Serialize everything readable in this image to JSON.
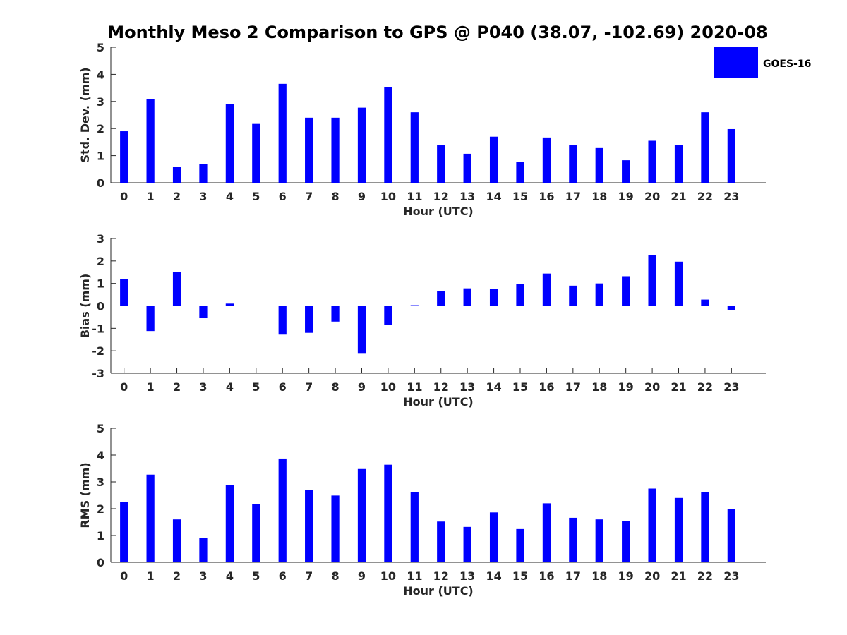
{
  "chart_data": [
    {
      "type": "bar",
      "title": "Monthly Meso 2 Comparison to GPS @ P040 (38.07, -102.69) 2020-08",
      "xlabel": "Hour (UTC)",
      "ylabel": "Std. Dev. (mm)",
      "ylim": [
        0,
        5
      ],
      "yticks": [
        0,
        1,
        2,
        3,
        4,
        5
      ],
      "categories": [
        "0",
        "1",
        "2",
        "3",
        "4",
        "5",
        "6",
        "7",
        "8",
        "9",
        "10",
        "11",
        "12",
        "13",
        "14",
        "15",
        "16",
        "17",
        "18",
        "19",
        "20",
        "21",
        "22",
        "23"
      ],
      "series": [
        {
          "name": "GOES-16",
          "color": "#0000ff",
          "values": [
            1.9,
            3.08,
            0.58,
            0.7,
            2.9,
            2.17,
            3.65,
            2.4,
            2.4,
            2.77,
            3.52,
            2.6,
            1.38,
            1.07,
            1.7,
            0.76,
            1.67,
            1.38,
            1.28,
            0.83,
            1.55,
            1.38,
            2.6,
            1.98
          ]
        }
      ],
      "legend": {
        "placement": "top-right",
        "entries": [
          "GOES-16"
        ]
      },
      "grid": false
    },
    {
      "type": "bar",
      "xlabel": "Hour (UTC)",
      "ylabel": "Bias (mm)",
      "ylim": [
        -3,
        3
      ],
      "yticks": [
        -3,
        -2,
        -1,
        0,
        1,
        2,
        3
      ],
      "categories": [
        "0",
        "1",
        "2",
        "3",
        "4",
        "5",
        "6",
        "7",
        "8",
        "9",
        "10",
        "11",
        "12",
        "13",
        "14",
        "15",
        "16",
        "17",
        "18",
        "19",
        "20",
        "21",
        "22",
        "23"
      ],
      "series": [
        {
          "color": "#0000ff",
          "values": [
            1.2,
            -1.12,
            1.5,
            -0.55,
            0.1,
            0.0,
            -1.28,
            -1.2,
            -0.7,
            -2.13,
            -0.85,
            0.03,
            0.67,
            0.78,
            0.75,
            0.97,
            1.44,
            0.9,
            1.0,
            1.32,
            2.25,
            1.97,
            0.28,
            -0.2
          ]
        }
      ],
      "grid": false
    },
    {
      "type": "bar",
      "xlabel": "Hour (UTC)",
      "ylabel": "RMS (mm)",
      "ylim": [
        0,
        5
      ],
      "yticks": [
        0,
        1,
        2,
        3,
        4,
        5
      ],
      "categories": [
        "0",
        "1",
        "2",
        "3",
        "4",
        "5",
        "6",
        "7",
        "8",
        "9",
        "10",
        "11",
        "12",
        "13",
        "14",
        "15",
        "16",
        "17",
        "18",
        "19",
        "20",
        "21",
        "22",
        "23"
      ],
      "series": [
        {
          "color": "#0000ff",
          "values": [
            2.25,
            3.27,
            1.6,
            0.9,
            2.88,
            2.18,
            3.87,
            2.69,
            2.49,
            3.48,
            3.64,
            2.62,
            1.52,
            1.32,
            1.86,
            1.24,
            2.2,
            1.66,
            1.6,
            1.55,
            2.75,
            2.4,
            2.62,
            2.0
          ]
        }
      ],
      "grid": false
    }
  ]
}
